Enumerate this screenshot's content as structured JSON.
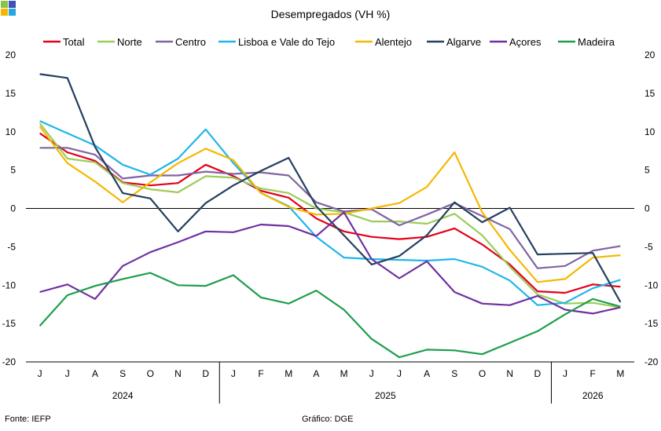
{
  "logo_colors": [
    "#8bc34a",
    "#3f51b5",
    "#f5b800",
    "#29a8e0"
  ],
  "footer": {
    "source": "Fonte: IEFP",
    "graphic": "Gráfico: DGE"
  },
  "chart_data": {
    "type": "line",
    "title": "Desempregados  (VH %)",
    "ylim": [
      -20,
      20
    ],
    "yticks": [
      -20,
      -15,
      -10,
      -5,
      0,
      5,
      10,
      15,
      20
    ],
    "categories": [
      "J",
      "J",
      "A",
      "S",
      "O",
      "N",
      "D",
      "J",
      "F",
      "M",
      "A",
      "M",
      "J",
      "J",
      "A",
      "S",
      "O",
      "N",
      "D",
      "J",
      "F",
      "M"
    ],
    "years": [
      {
        "label": "2024",
        "start": 0,
        "end": 6
      },
      {
        "label": "2025",
        "start": 7,
        "end": 18
      },
      {
        "label": "2026",
        "start": 19,
        "end": 21
      }
    ],
    "series": [
      {
        "name": "Total",
        "color": "#e3001b",
        "values": [
          9.8,
          7.3,
          6.2,
          3.4,
          3.0,
          3.3,
          5.7,
          4.2,
          2.3,
          1.4,
          -1.3,
          -3.0,
          -3.7,
          -4.0,
          -3.7,
          -2.6,
          -4.7,
          -7.3,
          -10.8,
          -11.0,
          -9.9,
          -10.2
        ]
      },
      {
        "name": "Norte",
        "color": "#9acd5a",
        "values": [
          11.1,
          6.5,
          6.0,
          3.3,
          2.5,
          2.1,
          4.2,
          4.0,
          2.6,
          2.0,
          0.0,
          -0.5,
          -1.7,
          -1.7,
          -2.0,
          -0.7,
          -3.5,
          -7.6,
          -11.2,
          -12.4,
          -12.3,
          -12.9
        ]
      },
      {
        "name": "Centro",
        "color": "#8064a2",
        "values": [
          7.9,
          7.9,
          7.0,
          3.9,
          4.3,
          4.3,
          4.8,
          4.5,
          4.7,
          4.3,
          0.8,
          -0.4,
          -0.1,
          -2.2,
          -0.8,
          0.7,
          -1.0,
          -2.7,
          -7.8,
          -7.5,
          -5.5,
          -4.9
        ]
      },
      {
        "name": "Lisboa e Vale do Tejo",
        "color": "#1fb6ea",
        "values": [
          11.4,
          9.8,
          8.2,
          5.7,
          4.4,
          6.5,
          10.3,
          5.9,
          2.0,
          0.3,
          -3.7,
          -6.4,
          -6.6,
          -6.7,
          -6.8,
          -6.6,
          -7.6,
          -9.4,
          -12.6,
          -12.3,
          -10.4,
          -9.3
        ]
      },
      {
        "name": "Alentejo",
        "color": "#f5b800",
        "values": [
          10.7,
          5.9,
          3.5,
          0.8,
          3.4,
          5.9,
          7.8,
          6.3,
          2.0,
          0.2,
          -0.8,
          -0.7,
          0.0,
          0.7,
          2.8,
          7.3,
          -0.5,
          -5.4,
          -9.6,
          -9.2,
          -6.4,
          -6.1
        ]
      },
      {
        "name": "Algarve",
        "color": "#243f60",
        "values": [
          17.5,
          17.0,
          8.0,
          2.0,
          1.3,
          -3.0,
          0.7,
          3.0,
          4.9,
          6.6,
          0.3,
          -3.5,
          -7.3,
          -6.2,
          -3.5,
          0.8,
          -1.8,
          0.1,
          -6.0,
          -5.9,
          -5.8,
          -12.2
        ]
      },
      {
        "name": "Açores",
        "color": "#7030a0",
        "values": [
          -10.9,
          -9.9,
          -11.8,
          -7.5,
          -5.7,
          -4.4,
          -3.0,
          -3.1,
          -2.1,
          -2.3,
          -3.6,
          -0.5,
          -6.6,
          -9.1,
          -6.9,
          -10.9,
          -12.4,
          -12.6,
          -11.4,
          -13.2,
          -13.7,
          -12.9
        ]
      },
      {
        "name": "Madeira",
        "color": "#1e9e4c",
        "values": [
          -15.3,
          -11.3,
          -10.1,
          -9.2,
          -8.4,
          -10.0,
          -10.1,
          -8.7,
          -11.6,
          -12.4,
          -10.7,
          -13.2,
          -17.0,
          -19.4,
          -18.4,
          -18.5,
          -19.0,
          -17.5,
          -16.0,
          -13.8,
          -11.8,
          -12.8
        ]
      }
    ]
  }
}
